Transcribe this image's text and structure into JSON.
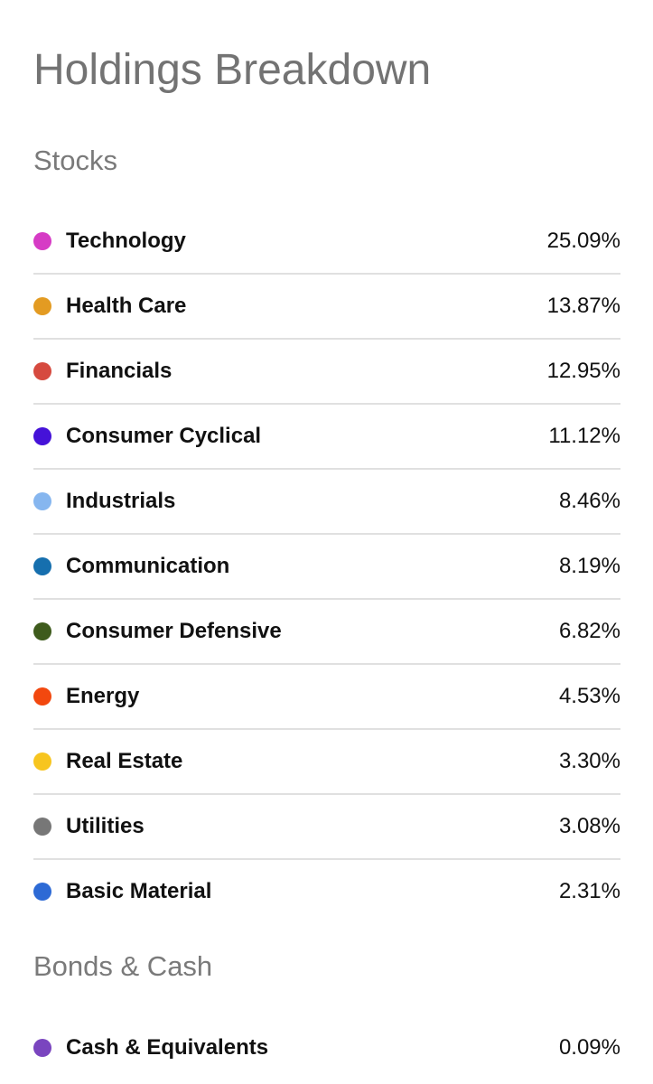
{
  "title": "Holdings Breakdown",
  "sections": {
    "stocks": {
      "heading": "Stocks",
      "items": [
        {
          "name": "Technology",
          "value": "25.09%",
          "color": "#d63bc5"
        },
        {
          "name": "Health Care",
          "value": "13.87%",
          "color": "#e39b22"
        },
        {
          "name": "Financials",
          "value": "12.95%",
          "color": "#d64a3f"
        },
        {
          "name": "Consumer Cyclical",
          "value": "11.12%",
          "color": "#4512d8"
        },
        {
          "name": "Industrials",
          "value": "8.46%",
          "color": "#86b6ef"
        },
        {
          "name": "Communication",
          "value": "8.19%",
          "color": "#166fae"
        },
        {
          "name": "Consumer Defensive",
          "value": "6.82%",
          "color": "#3e5b1c"
        },
        {
          "name": "Energy",
          "value": "4.53%",
          "color": "#f2480f"
        },
        {
          "name": "Real Estate",
          "value": "3.30%",
          "color": "#f7c51f"
        },
        {
          "name": "Utilities",
          "value": "3.08%",
          "color": "#777777"
        },
        {
          "name": "Basic Material",
          "value": "2.31%",
          "color": "#2d6ad5"
        }
      ]
    },
    "bonds": {
      "heading": "Bonds & Cash",
      "items": [
        {
          "name": "Cash & Equivalents",
          "value": "0.09%",
          "color": "#7a45bf"
        }
      ]
    }
  }
}
